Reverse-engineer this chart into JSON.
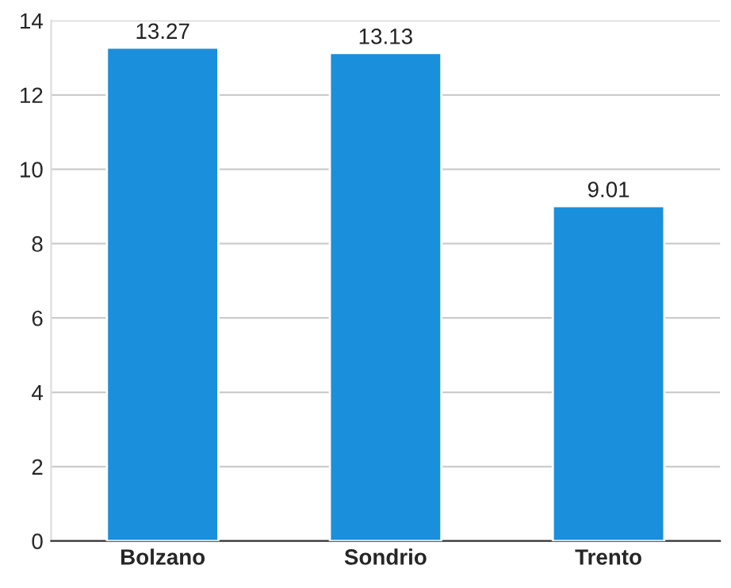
{
  "chart_data": {
    "type": "bar",
    "categories": [
      "Bolzano",
      "Sondrio",
      "Trento"
    ],
    "values": [
      13.27,
      13.13,
      9.01
    ],
    "color": "#1a8fdc",
    "ylim": [
      0,
      14
    ],
    "yticks": [
      0,
      2,
      4,
      6,
      8,
      10,
      12,
      14
    ],
    "grid": "y",
    "data_labels": true
  }
}
